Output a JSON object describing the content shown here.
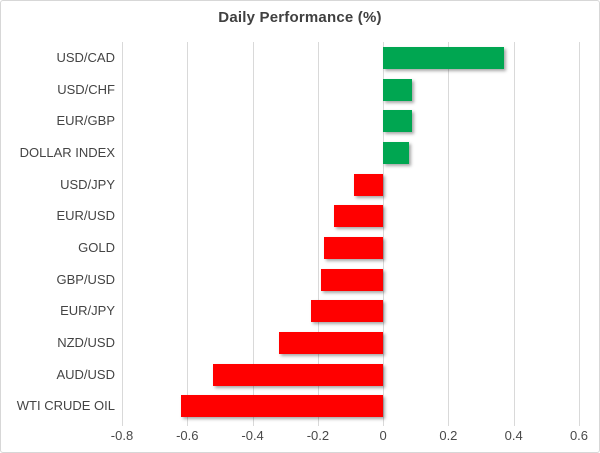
{
  "chart_data": {
    "type": "bar",
    "orientation": "horizontal",
    "title": "Daily Performance (%)",
    "categories": [
      "USD/CAD",
      "USD/CHF",
      "EUR/GBP",
      "DOLLAR INDEX",
      "USD/JPY",
      "EUR/USD",
      "GOLD",
      "GBP/USD",
      "EUR/JPY",
      "NZD/USD",
      "AUD/USD",
      "WTI CRUDE OIL"
    ],
    "values": [
      0.37,
      0.09,
      0.09,
      0.08,
      -0.09,
      -0.15,
      -0.18,
      -0.19,
      -0.22,
      -0.32,
      -0.52,
      -0.62
    ],
    "xlabel": "",
    "ylabel": "",
    "xlim": [
      -0.8,
      0.6
    ],
    "xticks": [
      -0.8,
      -0.6,
      -0.4,
      -0.2,
      0,
      0.2,
      0.4,
      0.6
    ],
    "xtick_labels": [
      "-0.8",
      "-0.6",
      "-0.4",
      "-0.2",
      "0",
      "0.2",
      "0.4",
      "0.6"
    ],
    "grid": true,
    "legend": false,
    "positive_color": "#00A651",
    "negative_color": "#FF0000",
    "gridline_color": "#D9D9D9",
    "title_color": "#404040",
    "label_color": "#444444"
  }
}
